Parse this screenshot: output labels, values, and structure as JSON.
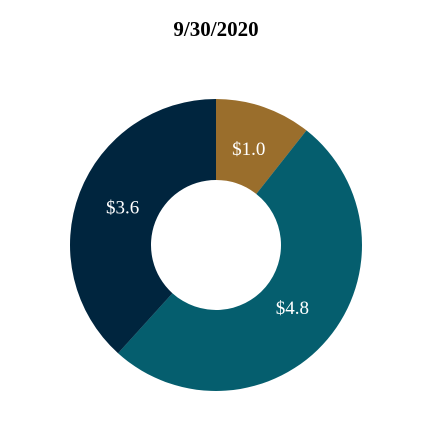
{
  "chart_data": {
    "type": "donut",
    "title": "9/30/2020",
    "values": [
      1.0,
      4.8,
      3.6
    ],
    "value_labels": [
      "$1.0",
      "$4.8",
      "$3.6"
    ],
    "colors": [
      "#9a6e2c",
      "#055e6e",
      "#00253e"
    ]
  }
}
